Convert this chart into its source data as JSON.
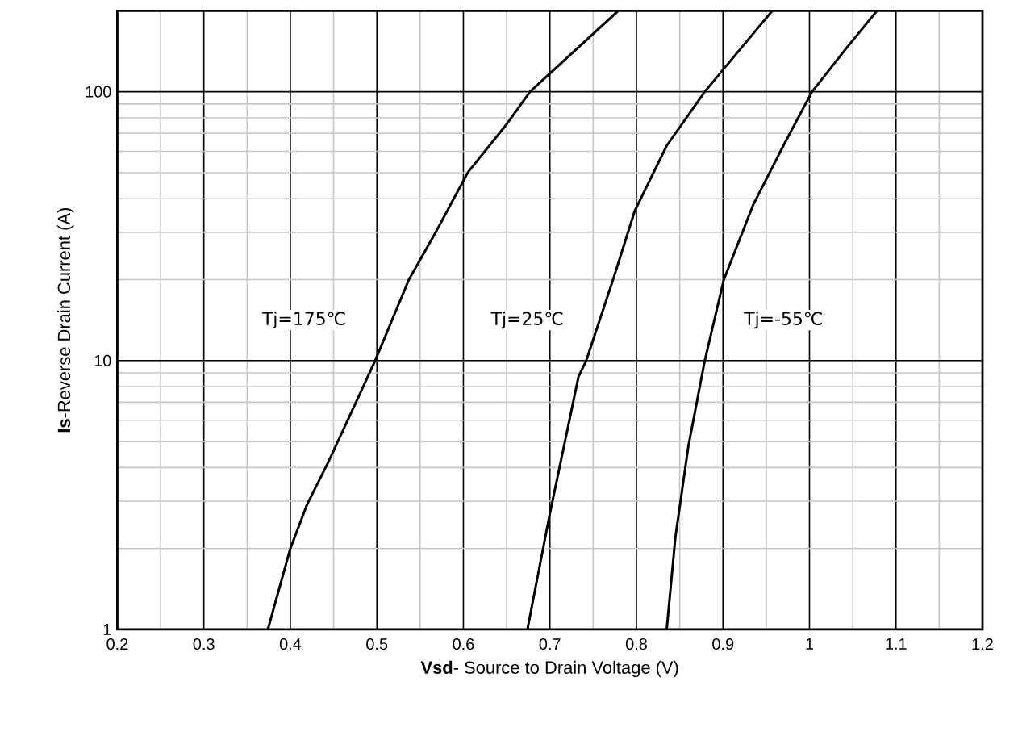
{
  "chart_data": {
    "type": "line",
    "xlabel": "**Vsd**- Source to Drain Voltage (V)",
    "ylabel": "**Is**-Reverse Drain Current (A)",
    "log": "y",
    "grid": true,
    "legend": false,
    "marker": "none",
    "line_style": "solid",
    "xlim": [
      0.2,
      1.2
    ],
    "xticks": [
      0.2,
      0.3,
      0.4,
      0.5,
      0.6,
      0.7,
      0.8,
      0.9,
      1,
      1.1,
      1.2
    ],
    "ylim": [
      1,
      200
    ],
    "yticks": [
      1,
      10,
      100
    ],
    "series": [
      {
        "name": "Tj=175℃",
        "color": "#000000",
        "x": [
          0.374,
          0.4,
          0.419,
          0.444,
          0.481,
          0.498,
          0.537,
          0.568,
          0.605,
          0.649,
          0.677,
          0.779
        ],
        "values": [
          1,
          2.0,
          2.9,
          4.2,
          7.6,
          10,
          20,
          30,
          50,
          75,
          100,
          200
        ]
      },
      {
        "name": "Tj=25℃",
        "color": "#000000",
        "x": [
          0.674,
          0.68,
          0.7,
          0.733,
          0.742,
          0.773,
          0.798,
          0.835,
          0.879,
          0.904,
          0.957
        ],
        "values": [
          1,
          1.26,
          2.7,
          8.7,
          10,
          20,
          36,
          63,
          100,
          125,
          200
        ]
      },
      {
        "name": "Tj=-55℃",
        "color": "#000000",
        "x": [
          0.835,
          0.845,
          0.86,
          0.879,
          0.901,
          0.935,
          0.972,
          1.003,
          1.041,
          1.078
        ],
        "values": [
          1,
          2.2,
          4.8,
          10,
          20,
          38,
          65,
          100,
          143,
          200
        ]
      }
    ]
  }
}
